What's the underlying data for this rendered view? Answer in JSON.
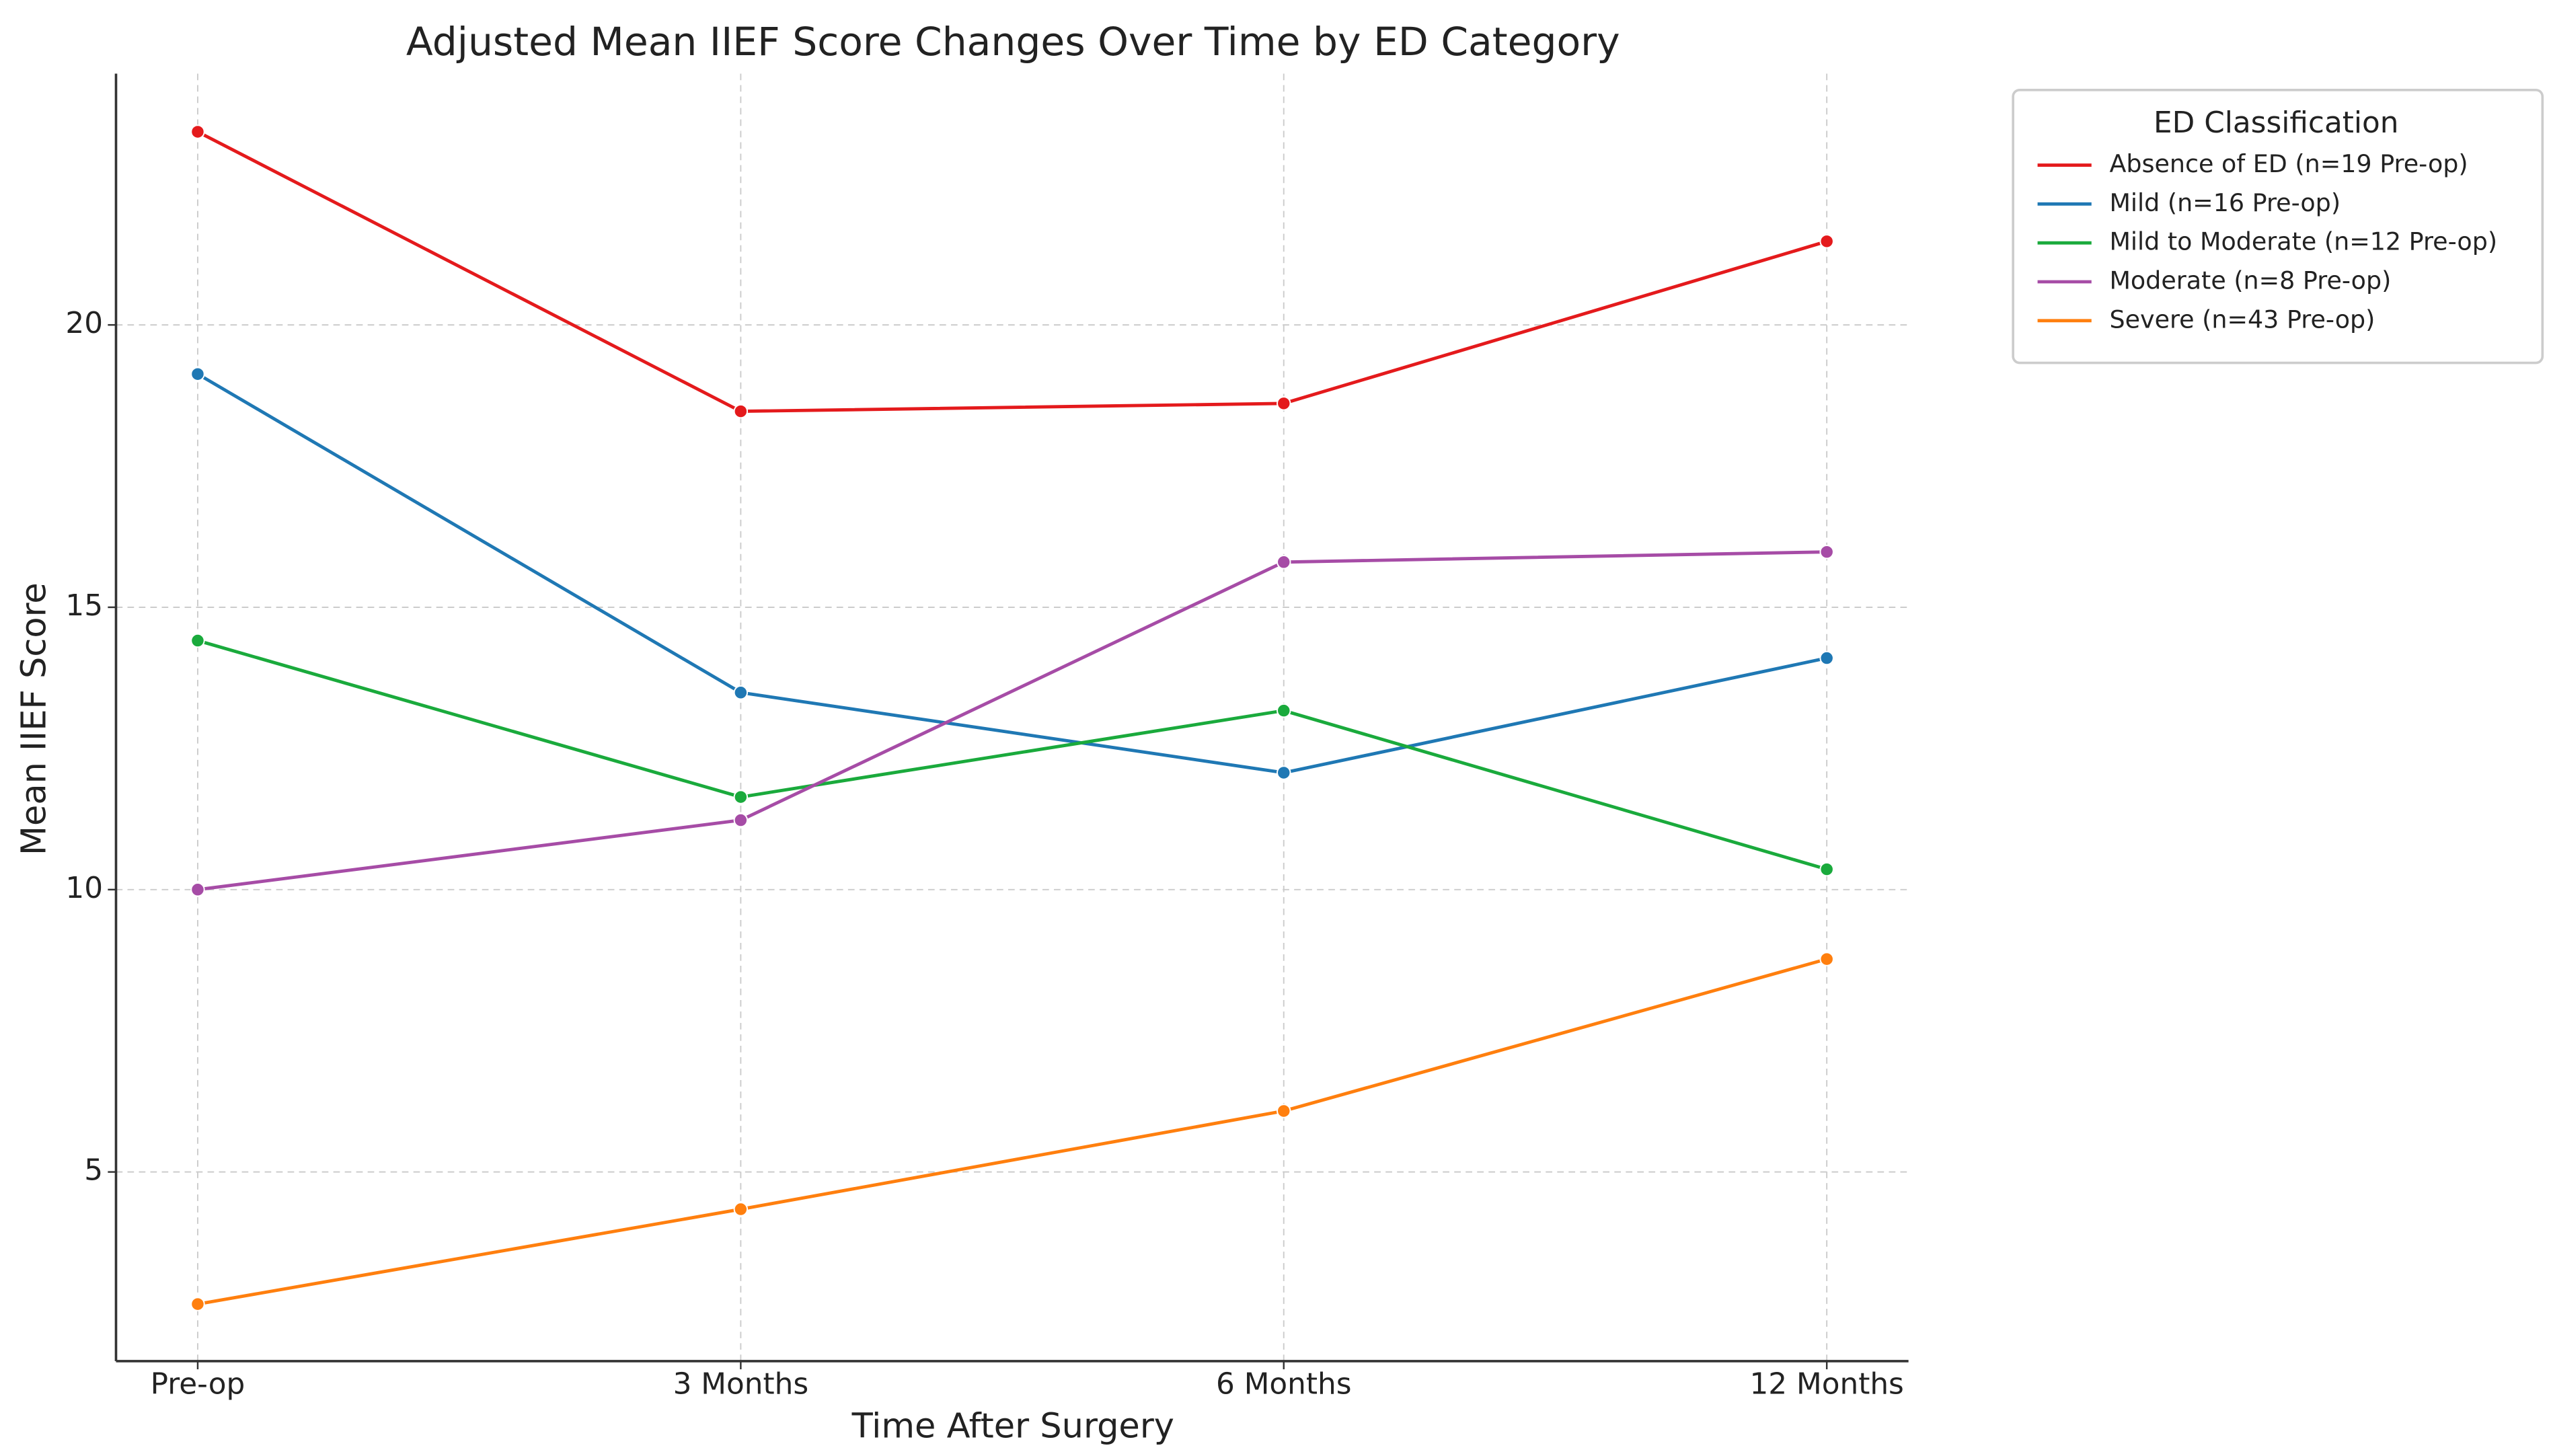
{
  "chart_data": {
    "type": "line",
    "title": "Adjusted Mean IIEF Score Changes Over Time by ED Category",
    "x_label": "Time After Surgery",
    "y_label": "Mean IIEF Score",
    "categories": [
      "Pre-op",
      "3 Months",
      "6 Months",
      "12 Months"
    ],
    "ylim": [
      1.65,
      24.45
    ],
    "yticks": [
      5,
      10,
      15,
      20
    ],
    "grid": true,
    "legend_title": "ED Classification",
    "legend": "right",
    "series": [
      {
        "name": "Absence of ED (n=19 Pre-op)",
        "color": "#e41a1c",
        "values": [
          23.42,
          18.47,
          18.61,
          21.48
        ]
      },
      {
        "name": "Mild (n=16 Pre-op)",
        "color": "#1f78b4",
        "values": [
          19.13,
          13.49,
          12.07,
          14.1
        ]
      },
      {
        "name": "Mild to Moderate (n=12 Pre-op)",
        "color": "#1aaa3c",
        "values": [
          14.41,
          11.64,
          13.17,
          10.36
        ]
      },
      {
        "name": "Moderate (n=8 Pre-op)",
        "color": "#a64ca6",
        "values": [
          10.0,
          11.23,
          15.8,
          15.98
        ]
      },
      {
        "name": "Severe (n=43 Pre-op)",
        "color": "#ff7f0e",
        "values": [
          2.66,
          4.34,
          6.08,
          8.77
        ]
      }
    ]
  }
}
